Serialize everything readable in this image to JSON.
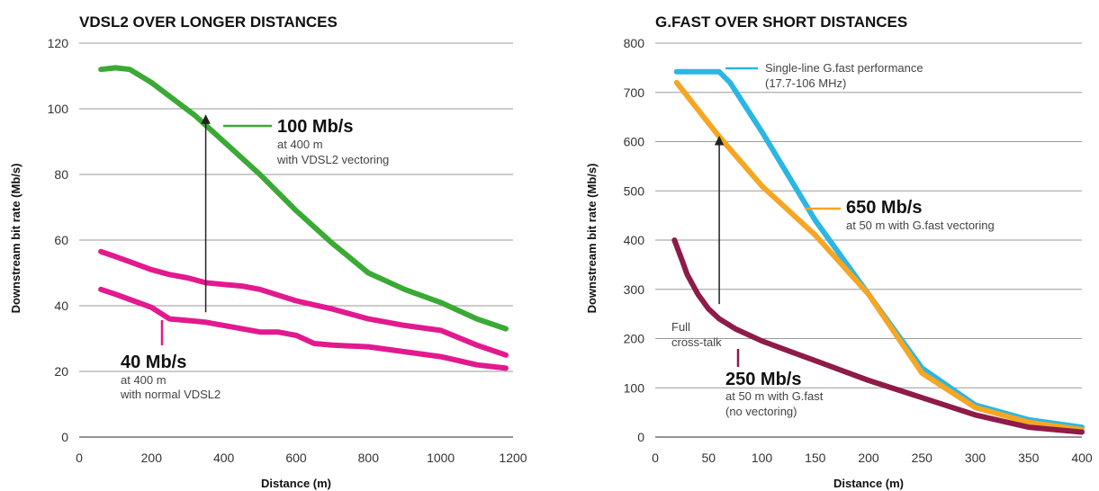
{
  "chart_data": [
    {
      "type": "line",
      "title": "VDSL2 OVER LONGER DISTANCES",
      "xlabel": "Distance (m)",
      "ylabel": "Downstream bit rate (Mb/s)",
      "xlim": [
        0,
        1200
      ],
      "ylim": [
        0,
        120
      ],
      "xticks": [
        0,
        200,
        400,
        600,
        800,
        1000,
        1200
      ],
      "yticks": [
        0,
        20,
        40,
        60,
        80,
        100,
        120
      ],
      "grid": "horizontal",
      "series": [
        {
          "color": "#3aaa35",
          "x": [
            60,
            100,
            140,
            200,
            260,
            320,
            400,
            500,
            600,
            700,
            800,
            900,
            1000,
            1100,
            1180
          ],
          "y": [
            112,
            112.5,
            112,
            108,
            103,
            98,
            90,
            80,
            69,
            59,
            50,
            45,
            41,
            36,
            33
          ]
        },
        {
          "color": "#e2198f",
          "x": [
            60,
            100,
            150,
            200,
            250,
            300,
            350,
            400,
            450,
            500,
            600,
            700,
            800,
            900,
            1000,
            1100,
            1180
          ],
          "y": [
            56.5,
            55,
            53,
            51,
            49.5,
            48.5,
            47,
            46.5,
            46,
            45,
            41.5,
            39,
            36,
            34,
            32.5,
            28,
            25
          ]
        },
        {
          "color": "#e2198f",
          "x": [
            60,
            100,
            150,
            200,
            250,
            300,
            350,
            400,
            450,
            500,
            550,
            600,
            650,
            700,
            800,
            900,
            1000,
            1100,
            1180
          ],
          "y": [
            45,
            43.5,
            41.5,
            39.5,
            36,
            35.5,
            35,
            34,
            33,
            32,
            32,
            31,
            28.5,
            28,
            27.5,
            26,
            24.5,
            22,
            21
          ]
        }
      ],
      "annotations": [
        {
          "value": "100 Mb/s",
          "lines": [
            "at 400 m",
            "with VDSL2 vectoring"
          ]
        },
        {
          "value": "40 Mb/s",
          "lines": [
            "at 400 m",
            "with normal VDSL2"
          ]
        }
      ],
      "arrow": {
        "x": 350,
        "y_from": 38,
        "y_to": 98
      }
    },
    {
      "type": "line",
      "title": "G.FAST OVER SHORT DISTANCES",
      "xlabel": "Distance (m)",
      "ylabel": "Downstream bit rate (Mb/s)",
      "xlim": [
        0,
        400
      ],
      "ylim": [
        0,
        800
      ],
      "xticks": [
        0,
        50,
        100,
        150,
        200,
        250,
        300,
        350,
        400
      ],
      "yticks": [
        0,
        100,
        200,
        300,
        400,
        500,
        600,
        700,
        800
      ],
      "grid": "horizontal",
      "series": [
        {
          "name": "Single-line G.fast performance (17.7-106 MHz)",
          "color": "#2bb6e3",
          "x": [
            20,
            40,
            60,
            70,
            100,
            150,
            200,
            250,
            300,
            350,
            400
          ],
          "y": [
            742,
            742,
            742,
            720,
            620,
            440,
            290,
            140,
            65,
            35,
            20
          ]
        },
        {
          "color": "#f5a623",
          "x": [
            20,
            40,
            60,
            80,
            100,
            150,
            200,
            250,
            300,
            350,
            400
          ],
          "y": [
            720,
            665,
            610,
            560,
            510,
            410,
            290,
            130,
            60,
            30,
            15
          ]
        },
        {
          "color": "#8e1b49",
          "x": [
            18,
            25,
            30,
            40,
            50,
            60,
            75,
            100,
            125,
            150,
            175,
            200,
            250,
            300,
            350,
            400
          ],
          "y": [
            400,
            360,
            330,
            290,
            260,
            240,
            220,
            195,
            175,
            155,
            135,
            115,
            80,
            45,
            20,
            10
          ]
        }
      ],
      "legend": {
        "line1": "Single-line G.fast performance",
        "line2": "(17.7-106 MHz)"
      },
      "annotations": [
        {
          "value": "650 Mb/s",
          "lines": [
            "at 50 m with G.fast vectoring"
          ]
        },
        {
          "value": "250 Mb/s",
          "lines": [
            "at 50 m with G.fast",
            "(no vectoring)"
          ]
        }
      ],
      "note": [
        "Full",
        "cross-talk"
      ],
      "arrow": {
        "x": 60,
        "y_from": 270,
        "y_to": 610
      }
    }
  ]
}
